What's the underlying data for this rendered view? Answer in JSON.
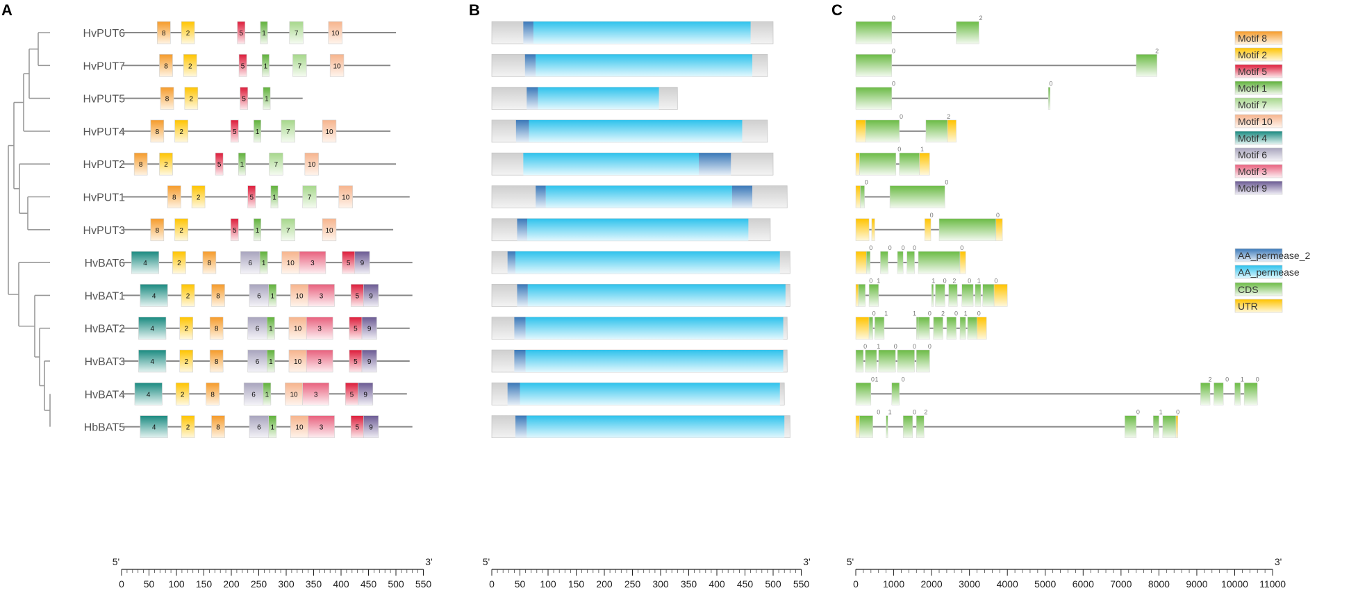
{
  "panels": {
    "a": "A",
    "b": "B",
    "c": "C"
  },
  "colors": {
    "motif": {
      "1": [
        "#5fb13a",
        "#f1f8ec"
      ],
      "2": [
        "#ffc400",
        "#fff8df"
      ],
      "3": [
        "#e8607d",
        "#fdeef1"
      ],
      "4": [
        "#1a8a80",
        "#e4f3f1"
      ],
      "5": [
        "#dd1c3a",
        "#fde9ec"
      ],
      "6": [
        "#a8a4bd",
        "#f4f3f8"
      ],
      "7": [
        "#a6d78b",
        "#f5fbf1"
      ],
      "8": [
        "#f59b2a",
        "#fff3e2"
      ],
      "9": [
        "#6b5a93",
        "#efedf5"
      ],
      "10": [
        "#f6b48d",
        "#fff4ec"
      ]
    },
    "aa": [
      "#2ec2ec",
      "#e2f8fe"
    ],
    "aa2": [
      "#3a78b8",
      "#e6eff8"
    ],
    "cds": [
      "#6bbb45",
      "#f2f9ee"
    ],
    "utr": [
      "#ffc300",
      "#fff8dc"
    ],
    "protein_bg": "#dcdcdc",
    "line": "#888888"
  },
  "genes": [
    {
      "name": "HvPUT6",
      "len": 500,
      "motifs": [
        [
          65,
          89,
          "8"
        ],
        [
          109,
          133,
          "2"
        ],
        [
          211,
          225,
          "5"
        ],
        [
          253,
          266,
          "1"
        ],
        [
          306,
          331,
          "7"
        ],
        [
          377,
          402,
          "10"
        ]
      ],
      "aa": [
        [
          56,
          74,
          "aa2"
        ],
        [
          74,
          460,
          "aa"
        ]
      ],
      "exons": [
        [
          0,
          950,
          "cds"
        ],
        [
          2650,
          3250,
          "cds"
        ]
      ],
      "glen": 3250,
      "phases": [
        [
          1000,
          "0"
        ],
        [
          3300,
          "2"
        ]
      ]
    },
    {
      "name": "HvPUT7",
      "len": 490,
      "motifs": [
        [
          69,
          93,
          "8"
        ],
        [
          113,
          137,
          "2"
        ],
        [
          214,
          228,
          "5"
        ],
        [
          256,
          269,
          "1"
        ],
        [
          312,
          337,
          "7"
        ],
        [
          380,
          405,
          "10"
        ]
      ],
      "aa": [
        [
          59,
          78,
          "aa2"
        ],
        [
          78,
          463,
          "aa"
        ]
      ],
      "exons": [
        [
          0,
          950,
          "cds"
        ],
        [
          7400,
          7950,
          "cds"
        ]
      ],
      "glen": 7950,
      "phases": [
        [
          1000,
          "0"
        ],
        [
          7950,
          "2"
        ]
      ]
    },
    {
      "name": "HvPUT5",
      "len": 330,
      "motifs": [
        [
          71,
          95,
          "8"
        ],
        [
          115,
          139,
          "2"
        ],
        [
          216,
          230,
          "5"
        ],
        [
          258,
          271,
          "1"
        ]
      ],
      "aa": [
        [
          62,
          82,
          "aa2"
        ],
        [
          82,
          297,
          "aa"
        ]
      ],
      "exons": [
        [
          0,
          950,
          "cds"
        ],
        [
          5080,
          5130,
          "cds"
        ]
      ],
      "glen": 5130,
      "phases": [
        [
          1000,
          "0"
        ],
        [
          5150,
          "0"
        ]
      ]
    },
    {
      "name": "HvPUT4",
      "len": 490,
      "motifs": [
        [
          53,
          77,
          "8"
        ],
        [
          97,
          121,
          "2"
        ],
        [
          199,
          213,
          "5"
        ],
        [
          241,
          254,
          "1"
        ],
        [
          291,
          316,
          "7"
        ],
        [
          366,
          391,
          "10"
        ]
      ],
      "aa": [
        [
          43,
          66,
          "aa2"
        ],
        [
          66,
          445,
          "aa"
        ]
      ],
      "exons": [
        [
          0,
          260,
          "utr"
        ],
        [
          260,
          1150,
          "cds"
        ],
        [
          1850,
          2420,
          "cds"
        ],
        [
          2420,
          2650,
          "utr"
        ]
      ],
      "glen": 2650,
      "phases": [
        [
          1200,
          "0"
        ],
        [
          2450,
          "2"
        ]
      ]
    },
    {
      "name": "HvPUT2",
      "len": 500,
      "motifs": [
        [
          23,
          47,
          "8"
        ],
        [
          69,
          93,
          "2"
        ],
        [
          171,
          185,
          "5"
        ],
        [
          213,
          226,
          "1"
        ],
        [
          269,
          294,
          "7"
        ],
        [
          334,
          359,
          "10"
        ]
      ],
      "aa": [
        [
          56,
          368,
          "aa"
        ],
        [
          368,
          425,
          "aa2"
        ]
      ],
      "exons": [
        [
          0,
          100,
          "utr"
        ],
        [
          100,
          1060,
          "cds"
        ],
        [
          1150,
          1680,
          "cds"
        ],
        [
          1680,
          1950,
          "utr"
        ]
      ],
      "glen": 1950,
      "phases": [
        [
          1150,
          "0"
        ],
        [
          1750,
          "1"
        ]
      ]
    },
    {
      "name": "HvPUT1",
      "len": 525,
      "motifs": [
        [
          84,
          108,
          "8"
        ],
        [
          128,
          152,
          "2"
        ],
        [
          230,
          244,
          "5"
        ],
        [
          272,
          285,
          "1"
        ],
        [
          330,
          355,
          "7"
        ],
        [
          396,
          421,
          "10"
        ]
      ],
      "aa": [
        [
          78,
          96,
          "aa2"
        ],
        [
          96,
          427,
          "aa"
        ],
        [
          427,
          463,
          "aa2"
        ]
      ],
      "exons": [
        [
          0,
          120,
          "utr"
        ],
        [
          120,
          230,
          "cds"
        ],
        [
          900,
          2350,
          "cds"
        ]
      ],
      "glen": 2350,
      "phases": [
        [
          280,
          "0"
        ],
        [
          2400,
          "0"
        ]
      ]
    },
    {
      "name": "HvPUT3",
      "len": 495,
      "motifs": [
        [
          53,
          77,
          "8"
        ],
        [
          97,
          121,
          "2"
        ],
        [
          199,
          213,
          "5"
        ],
        [
          241,
          254,
          "1"
        ],
        [
          291,
          316,
          "7"
        ],
        [
          366,
          391,
          "10"
        ]
      ],
      "aa": [
        [
          45,
          63,
          "aa2"
        ],
        [
          63,
          456,
          "aa"
        ]
      ],
      "exons": [
        [
          0,
          350,
          "utr"
        ],
        [
          420,
          500,
          "utr"
        ],
        [
          1820,
          1980,
          "utr"
        ],
        [
          2200,
          3700,
          "cds"
        ],
        [
          3700,
          3870,
          "utr"
        ]
      ],
      "glen": 3870,
      "phases": [
        [
          2000,
          "0"
        ],
        [
          3750,
          "0"
        ]
      ]
    },
    {
      "name": "HvBAT6",
      "len": 530,
      "motifs": [
        [
          18,
          68,
          "4"
        ],
        [
          93,
          117,
          "2"
        ],
        [
          148,
          172,
          "8"
        ],
        [
          217,
          252,
          "6"
        ],
        [
          252,
          266,
          "1"
        ],
        [
          292,
          324,
          "10"
        ],
        [
          324,
          372,
          "3"
        ],
        [
          402,
          425,
          "5"
        ],
        [
          425,
          452,
          "9"
        ]
      ],
      "aa": [
        [
          28,
          42,
          "aa2"
        ],
        [
          42,
          512,
          "aa"
        ]
      ],
      "exons": [
        [
          0,
          280,
          "utr"
        ],
        [
          280,
          380,
          "cds"
        ],
        [
          650,
          850,
          "cds"
        ],
        [
          1100,
          1250,
          "cds"
        ],
        [
          1350,
          1550,
          "cds"
        ],
        [
          1650,
          2750,
          "cds"
        ],
        [
          2750,
          2900,
          "utr"
        ]
      ],
      "glen": 2900,
      "phases": [
        [
          400,
          "0"
        ],
        [
          900,
          "0"
        ],
        [
          1250,
          "0"
        ],
        [
          1550,
          "0"
        ],
        [
          2800,
          "0"
        ]
      ]
    },
    {
      "name": "HvBAT1",
      "len": 530,
      "motifs": [
        [
          34,
          84,
          "4"
        ],
        [
          109,
          133,
          "2"
        ],
        [
          164,
          188,
          "8"
        ],
        [
          233,
          268,
          "6"
        ],
        [
          268,
          282,
          "1"
        ],
        [
          308,
          340,
          "10"
        ],
        [
          340,
          388,
          "3"
        ],
        [
          418,
          441,
          "5"
        ],
        [
          441,
          468,
          "9"
        ]
      ],
      "aa": [
        [
          45,
          64,
          "aa2"
        ],
        [
          64,
          522,
          "aa"
        ]
      ],
      "exons": [
        [
          0,
          70,
          "utr"
        ],
        [
          70,
          250,
          "cds"
        ],
        [
          350,
          600,
          "cds"
        ],
        [
          2000,
          2050,
          "cds"
        ],
        [
          2100,
          2350,
          "cds"
        ],
        [
          2450,
          2680,
          "cds"
        ],
        [
          2800,
          3100,
          "cds"
        ],
        [
          3150,
          3300,
          "cds"
        ],
        [
          3350,
          3650,
          "cds"
        ],
        [
          3650,
          4000,
          "utr"
        ]
      ],
      "glen": 4000,
      "phases": [
        [
          400,
          "0"
        ],
        [
          600,
          "1"
        ],
        [
          2050,
          "1"
        ],
        [
          2350,
          "0"
        ],
        [
          2600,
          "2"
        ],
        [
          3000,
          "0"
        ],
        [
          3250,
          "1"
        ],
        [
          3700,
          "0"
        ]
      ]
    },
    {
      "name": "HvBAT2",
      "len": 525,
      "motifs": [
        [
          31,
          81,
          "4"
        ],
        [
          106,
          130,
          "2"
        ],
        [
          161,
          185,
          "8"
        ],
        [
          230,
          265,
          "6"
        ],
        [
          265,
          279,
          "1"
        ],
        [
          305,
          337,
          "10"
        ],
        [
          337,
          385,
          "3"
        ],
        [
          415,
          438,
          "5"
        ],
        [
          438,
          465,
          "9"
        ]
      ],
      "aa": [
        [
          40,
          60,
          "aa2"
        ],
        [
          60,
          518,
          "aa"
        ]
      ],
      "exons": [
        [
          0,
          350,
          "utr"
        ],
        [
          350,
          450,
          "cds"
        ],
        [
          500,
          750,
          "cds"
        ],
        [
          1600,
          1650,
          "cds"
        ],
        [
          1650,
          1950,
          "cds"
        ],
        [
          2050,
          2300,
          "cds"
        ],
        [
          2400,
          2650,
          "cds"
        ],
        [
          2750,
          2900,
          "cds"
        ],
        [
          2950,
          3200,
          "cds"
        ],
        [
          3200,
          3450,
          "utr"
        ]
      ],
      "glen": 3450,
      "phases": [
        [
          480,
          "0"
        ],
        [
          800,
          "1"
        ],
        [
          1550,
          "1"
        ],
        [
          1950,
          "0"
        ],
        [
          2300,
          "2"
        ],
        [
          2650,
          "0"
        ],
        [
          2900,
          "1"
        ],
        [
          3250,
          "0"
        ]
      ]
    },
    {
      "name": "HvBAT3",
      "len": 525,
      "motifs": [
        [
          31,
          81,
          "4"
        ],
        [
          106,
          130,
          "2"
        ],
        [
          161,
          185,
          "8"
        ],
        [
          230,
          265,
          "6"
        ],
        [
          265,
          279,
          "1"
        ],
        [
          305,
          337,
          "10"
        ],
        [
          337,
          385,
          "3"
        ],
        [
          415,
          438,
          "5"
        ],
        [
          438,
          465,
          "9"
        ]
      ],
      "aa": [
        [
          40,
          60,
          "aa2"
        ],
        [
          60,
          518,
          "aa"
        ]
      ],
      "exons": [
        [
          0,
          200,
          "cds"
        ],
        [
          250,
          550,
          "cds"
        ],
        [
          600,
          1050,
          "cds"
        ],
        [
          1100,
          1550,
          "cds"
        ],
        [
          1600,
          1950,
          "cds"
        ]
      ],
      "glen": 1950,
      "phases": [
        [
          250,
          "0"
        ],
        [
          600,
          "1"
        ],
        [
          1050,
          "0"
        ],
        [
          1550,
          "0"
        ],
        [
          1950,
          "0"
        ]
      ]
    },
    {
      "name": "HvBAT4",
      "len": 520,
      "motifs": [
        [
          24,
          74,
          "4"
        ],
        [
          99,
          123,
          "2"
        ],
        [
          154,
          178,
          "8"
        ],
        [
          223,
          258,
          "6"
        ],
        [
          258,
          272,
          "1"
        ],
        [
          298,
          330,
          "10"
        ],
        [
          330,
          378,
          "3"
        ],
        [
          408,
          431,
          "5"
        ],
        [
          431,
          458,
          "9"
        ]
      ],
      "aa": [
        [
          28,
          50,
          "aa2"
        ],
        [
          50,
          512,
          "aa"
        ]
      ],
      "exons": [
        [
          0,
          400,
          "cds"
        ],
        [
          950,
          1150,
          "cds"
        ],
        [
          9100,
          9350,
          "cds"
        ],
        [
          9450,
          9700,
          "cds"
        ],
        [
          10000,
          10150,
          "cds"
        ],
        [
          10250,
          10600,
          "cds"
        ]
      ],
      "glen": 10600,
      "phases": [
        [
          450,
          "0"
        ],
        [
          550,
          "1"
        ],
        [
          1250,
          "0"
        ],
        [
          9350,
          "2"
        ],
        [
          9800,
          "0"
        ],
        [
          10200,
          "1"
        ],
        [
          10600,
          "0"
        ]
      ]
    },
    {
      "name": "HbBAT5",
      "len": 530,
      "motifs": [
        [
          34,
          84,
          "4"
        ],
        [
          109,
          133,
          "2"
        ],
        [
          164,
          188,
          "8"
        ],
        [
          233,
          268,
          "6"
        ],
        [
          268,
          282,
          "1"
        ],
        [
          308,
          340,
          "10"
        ],
        [
          340,
          388,
          "3"
        ],
        [
          418,
          441,
          "5"
        ],
        [
          441,
          468,
          "9"
        ]
      ],
      "aa": [
        [
          42,
          62,
          "aa2"
        ],
        [
          62,
          520,
          "aa"
        ]
      ],
      "exons": [
        [
          0,
          100,
          "utr"
        ],
        [
          100,
          450,
          "cds"
        ],
        [
          800,
          830,
          "cds"
        ],
        [
          1250,
          1500,
          "cds"
        ],
        [
          1600,
          1800,
          "cds"
        ],
        [
          7100,
          7400,
          "cds"
        ],
        [
          7850,
          8000,
          "cds"
        ],
        [
          8100,
          8450,
          "cds"
        ],
        [
          8450,
          8500,
          "utr"
        ]
      ],
      "glen": 8500,
      "phases": [
        [
          600,
          "0"
        ],
        [
          900,
          "1"
        ],
        [
          1550,
          "0"
        ],
        [
          1850,
          "2"
        ],
        [
          7450,
          "0"
        ],
        [
          8050,
          "1"
        ],
        [
          8500,
          "0"
        ]
      ]
    }
  ],
  "legend_motifs": [
    {
      "key": "8",
      "label": "Motif 8"
    },
    {
      "key": "2",
      "label": "Motif 2"
    },
    {
      "key": "5",
      "label": "Motif 5"
    },
    {
      "key": "1",
      "label": "Motif 1"
    },
    {
      "key": "7",
      "label": "Motif 7"
    },
    {
      "key": "10",
      "label": "Motif 10"
    },
    {
      "key": "4",
      "label": "Motif 4"
    },
    {
      "key": "6",
      "label": "Motif 6"
    },
    {
      "key": "3",
      "label": "Motif 3"
    },
    {
      "key": "9",
      "label": "Motif 9"
    }
  ],
  "legend_domains": [
    {
      "key": "aa2",
      "label": "AA_permease_2"
    },
    {
      "key": "aa",
      "label": "AA_permease"
    }
  ],
  "legend_structure": [
    {
      "key": "cds",
      "label": "CDS"
    },
    {
      "key": "utr",
      "label": "UTR"
    }
  ],
  "axes": {
    "five_prime": "5'",
    "three_prime": "3'",
    "a_ticks": [
      0,
      50,
      100,
      150,
      200,
      250,
      300,
      350,
      400,
      450,
      500,
      550
    ],
    "b_ticks": [
      0,
      50,
      100,
      150,
      200,
      250,
      300,
      350,
      400,
      450,
      500,
      550
    ],
    "c_ticks": [
      0,
      1000,
      2000,
      3000,
      4000,
      5000,
      6000,
      7000,
      8000,
      9000,
      10000,
      11000
    ]
  }
}
